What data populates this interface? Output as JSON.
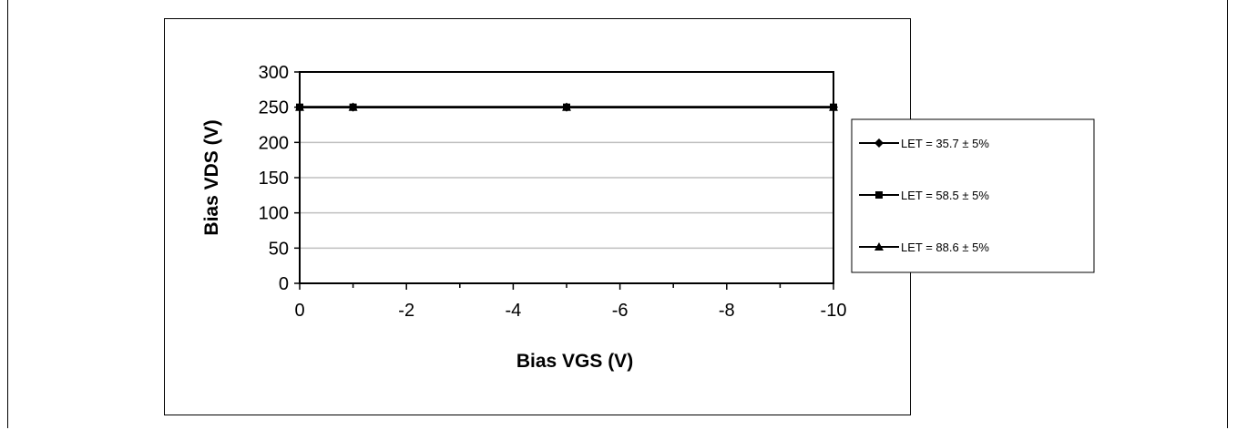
{
  "chart_data": {
    "type": "line",
    "xlabel": "Bias VGS (V)",
    "ylabel": "Bias VDS (V)",
    "xlim": [
      0,
      -10
    ],
    "ylim": [
      0,
      300
    ],
    "x_ticks": [
      0,
      -2,
      -4,
      -6,
      -8,
      -10
    ],
    "x_tick_labels": [
      "0",
      "-2",
      "-4",
      "-6",
      "-8",
      "-10"
    ],
    "y_ticks": [
      0,
      50,
      100,
      150,
      200,
      250,
      300
    ],
    "y_tick_labels": [
      "0",
      "50",
      "100",
      "150",
      "200",
      "250",
      "300"
    ],
    "grid": "horizontal",
    "legend_position": "right",
    "series": [
      {
        "name": "LET = 35.7 ± 5%",
        "marker": "diamond",
        "x": [
          0,
          -1,
          -5,
          -10
        ],
        "y": [
          250,
          250,
          250,
          250
        ]
      },
      {
        "name": "LET = 58.5 ± 5%",
        "marker": "square",
        "x": [
          0,
          -1,
          -5,
          -10
        ],
        "y": [
          250,
          250,
          250,
          250
        ]
      },
      {
        "name": "LET = 88.6 ± 5%",
        "marker": "triangle",
        "x": [
          0,
          -1,
          -5,
          -10
        ],
        "y": [
          250,
          250,
          250,
          250
        ]
      }
    ],
    "colors": {
      "line": "#000000",
      "grid": "#bfbfbf"
    }
  }
}
